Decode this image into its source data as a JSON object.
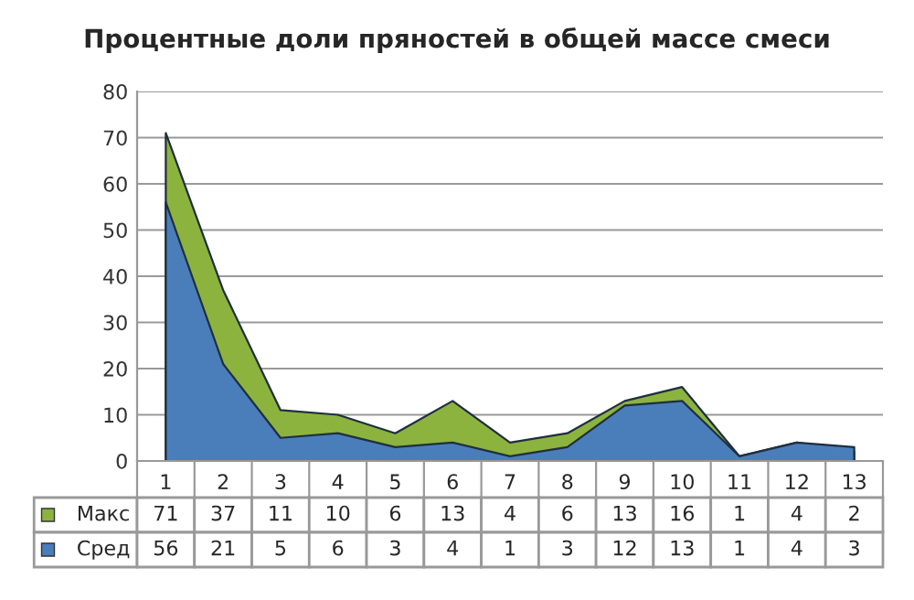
{
  "chart_data": {
    "type": "area",
    "title": "Процентные доли пряностей в общей массе смеси",
    "categories": [
      "1",
      "2",
      "3",
      "4",
      "5",
      "6",
      "7",
      "8",
      "9",
      "10",
      "11",
      "12",
      "13"
    ],
    "series": [
      {
        "name": "Макс",
        "color": "#8db33f",
        "values": [
          71,
          37,
          11,
          10,
          6,
          13,
          4,
          6,
          13,
          16,
          1,
          4,
          2
        ]
      },
      {
        "name": "Сред",
        "color": "#4a7ebb",
        "values": [
          56,
          21,
          5,
          6,
          3,
          4,
          1,
          3,
          12,
          13,
          1,
          4,
          3
        ]
      }
    ],
    "ylim": [
      0,
      80
    ],
    "yticks": [
      0,
      10,
      20,
      30,
      40,
      50,
      60,
      70,
      80
    ],
    "grid": "y",
    "data_labels": true,
    "legend": "bottom left"
  }
}
